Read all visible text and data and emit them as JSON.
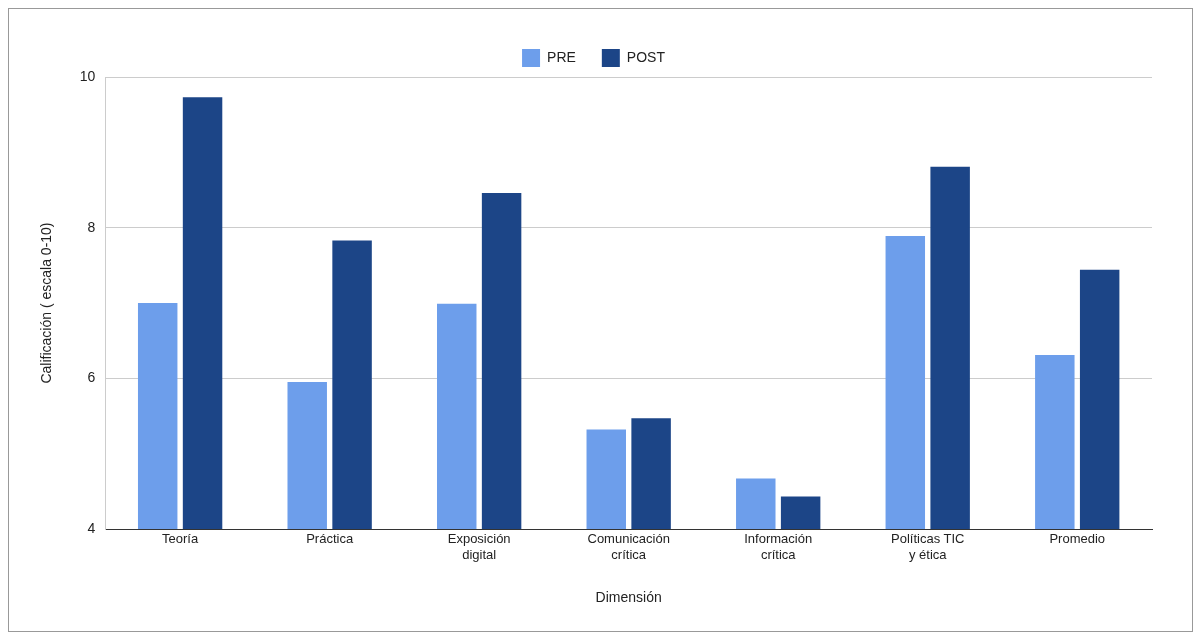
{
  "chart_data": {
    "type": "bar",
    "xlabel": "Dimensión",
    "ylabel": "Calificación ( escala 0-10)",
    "categories": [
      "Teoría",
      "Práctica",
      "Exposición digital",
      "Comunicación crítica",
      "Información crítica",
      "Políticas TIC y ética",
      "Promedio"
    ],
    "series": [
      {
        "name": "PRE",
        "color": "#6d9eeb",
        "values": [
          7.0,
          5.95,
          6.99,
          5.32,
          4.67,
          7.89,
          6.31
        ]
      },
      {
        "name": "POST",
        "color": "#1c4587",
        "values": [
          9.73,
          7.83,
          8.46,
          5.47,
          4.43,
          8.81,
          7.44
        ]
      }
    ],
    "ylim": [
      4,
      10
    ],
    "yticks": [
      4,
      6,
      8,
      10
    ],
    "grid": "y",
    "legend": "top"
  }
}
